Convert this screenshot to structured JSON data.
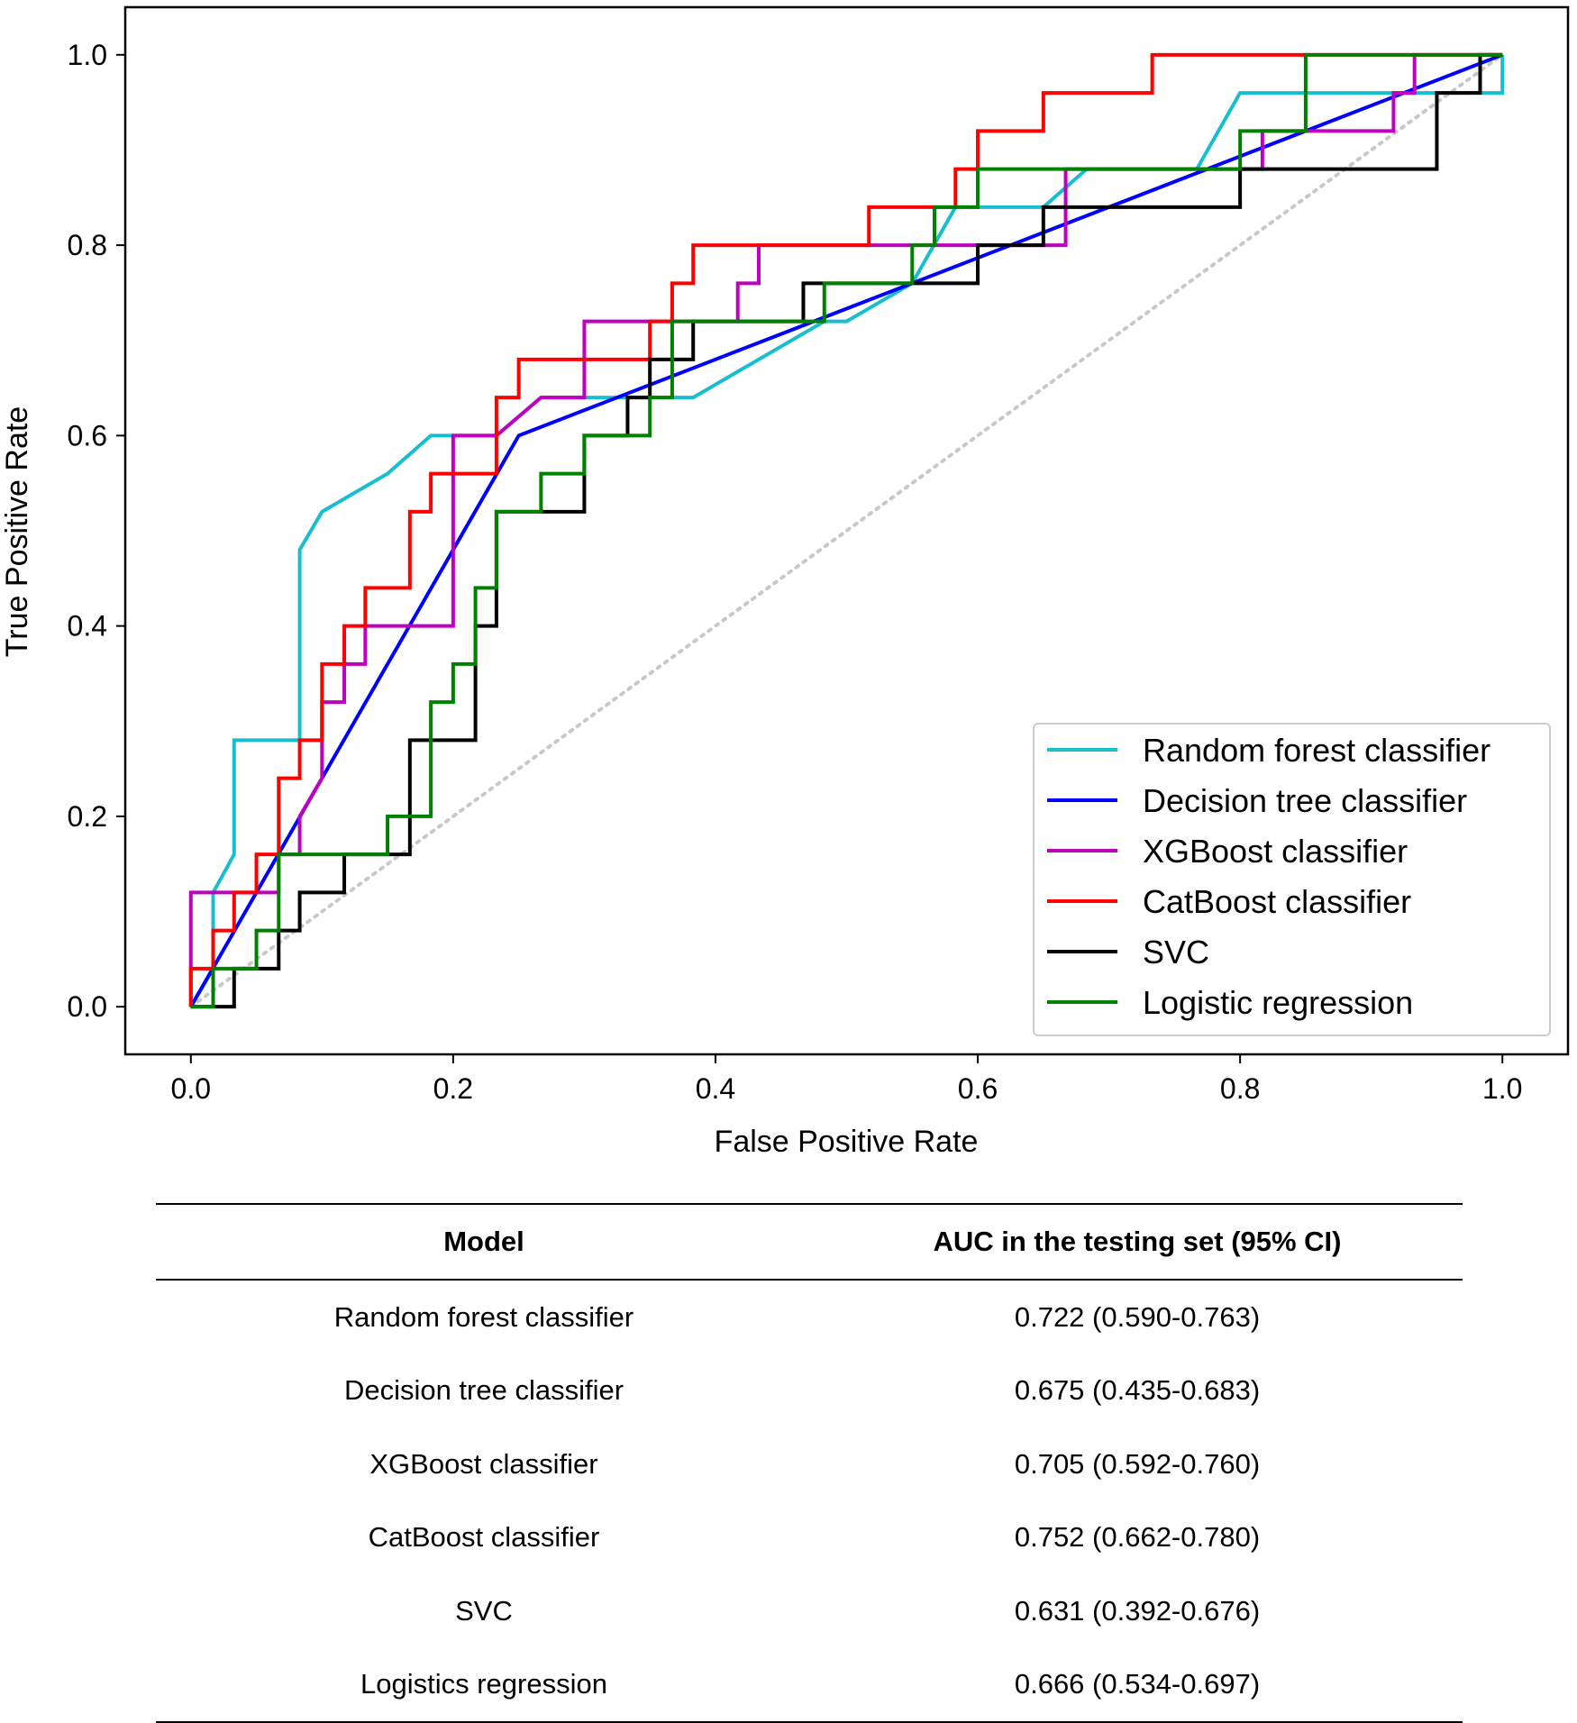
{
  "chart_data": {
    "type": "line",
    "title": "",
    "xlabel": "False Positive Rate",
    "ylabel": "True Positive Rate",
    "xlim": [
      -0.05,
      1.05
    ],
    "ylim": [
      -0.05,
      1.05
    ],
    "xticks": [
      "0.0",
      "0.2",
      "0.4",
      "0.6",
      "0.8",
      "1.0"
    ],
    "yticks": [
      "0.0",
      "0.2",
      "0.4",
      "0.6",
      "0.8",
      "1.0"
    ],
    "legend_position": "lower-right",
    "chance_line": {
      "name": "chance",
      "color": "#c8c8c8",
      "style": "dotted",
      "points": [
        [
          0,
          0
        ],
        [
          1,
          1
        ]
      ]
    },
    "series": [
      {
        "name": "Random forest classifier",
        "color": "#17becf",
        "points": [
          [
            0,
            0
          ],
          [
            0.017,
            0.04
          ],
          [
            0.017,
            0.12
          ],
          [
            0.033,
            0.16
          ],
          [
            0.033,
            0.28
          ],
          [
            0.083,
            0.28
          ],
          [
            0.083,
            0.48
          ],
          [
            0.1,
            0.52
          ],
          [
            0.15,
            0.56
          ],
          [
            0.183,
            0.6
          ],
          [
            0.233,
            0.6
          ],
          [
            0.267,
            0.64
          ],
          [
            0.383,
            0.64
          ],
          [
            0.433,
            0.68
          ],
          [
            0.483,
            0.72
          ],
          [
            0.5,
            0.72
          ],
          [
            0.55,
            0.76
          ],
          [
            0.583,
            0.84
          ],
          [
            0.65,
            0.84
          ],
          [
            0.683,
            0.88
          ],
          [
            0.767,
            0.88
          ],
          [
            0.8,
            0.96
          ],
          [
            1.0,
            0.96
          ],
          [
            1.0,
            1.0
          ]
        ]
      },
      {
        "name": "Decision tree classifier",
        "color": "#0000ff",
        "points": [
          [
            0,
            0
          ],
          [
            0.25,
            0.6
          ],
          [
            1.0,
            1.0
          ]
        ]
      },
      {
        "name": "XGBoost classifier",
        "color": "#bf00bf",
        "points": [
          [
            0,
            0
          ],
          [
            0,
            0.12
          ],
          [
            0.067,
            0.12
          ],
          [
            0.067,
            0.16
          ],
          [
            0.083,
            0.16
          ],
          [
            0.083,
            0.2
          ],
          [
            0.1,
            0.24
          ],
          [
            0.1,
            0.32
          ],
          [
            0.117,
            0.32
          ],
          [
            0.117,
            0.36
          ],
          [
            0.133,
            0.36
          ],
          [
            0.133,
            0.4
          ],
          [
            0.2,
            0.4
          ],
          [
            0.2,
            0.6
          ],
          [
            0.233,
            0.6
          ],
          [
            0.267,
            0.64
          ],
          [
            0.3,
            0.64
          ],
          [
            0.3,
            0.72
          ],
          [
            0.417,
            0.72
          ],
          [
            0.417,
            0.76
          ],
          [
            0.433,
            0.76
          ],
          [
            0.433,
            0.8
          ],
          [
            0.667,
            0.8
          ],
          [
            0.667,
            0.88
          ],
          [
            0.817,
            0.88
          ],
          [
            0.817,
            0.92
          ],
          [
            0.917,
            0.92
          ],
          [
            0.917,
            0.96
          ],
          [
            0.933,
            0.96
          ],
          [
            0.933,
            1.0
          ],
          [
            1.0,
            1.0
          ]
        ]
      },
      {
        "name": "CatBoost classifier",
        "color": "#ff0000",
        "points": [
          [
            0,
            0
          ],
          [
            0,
            0.04
          ],
          [
            0.017,
            0.04
          ],
          [
            0.017,
            0.08
          ],
          [
            0.033,
            0.08
          ],
          [
            0.033,
            0.12
          ],
          [
            0.05,
            0.12
          ],
          [
            0.05,
            0.16
          ],
          [
            0.067,
            0.16
          ],
          [
            0.067,
            0.24
          ],
          [
            0.083,
            0.24
          ],
          [
            0.083,
            0.28
          ],
          [
            0.1,
            0.28
          ],
          [
            0.1,
            0.36
          ],
          [
            0.117,
            0.36
          ],
          [
            0.117,
            0.4
          ],
          [
            0.133,
            0.4
          ],
          [
            0.133,
            0.44
          ],
          [
            0.167,
            0.44
          ],
          [
            0.167,
            0.52
          ],
          [
            0.183,
            0.52
          ],
          [
            0.183,
            0.56
          ],
          [
            0.233,
            0.56
          ],
          [
            0.233,
            0.64
          ],
          [
            0.25,
            0.64
          ],
          [
            0.25,
            0.68
          ],
          [
            0.35,
            0.68
          ],
          [
            0.35,
            0.72
          ],
          [
            0.367,
            0.72
          ],
          [
            0.367,
            0.76
          ],
          [
            0.383,
            0.76
          ],
          [
            0.383,
            0.8
          ],
          [
            0.517,
            0.8
          ],
          [
            0.517,
            0.84
          ],
          [
            0.583,
            0.84
          ],
          [
            0.583,
            0.88
          ],
          [
            0.6,
            0.88
          ],
          [
            0.6,
            0.92
          ],
          [
            0.65,
            0.92
          ],
          [
            0.65,
            0.96
          ],
          [
            0.733,
            0.96
          ],
          [
            0.733,
            1.0
          ],
          [
            1.0,
            1.0
          ]
        ]
      },
      {
        "name": "SVC",
        "color": "#000000",
        "points": [
          [
            0,
            0
          ],
          [
            0.033,
            0
          ],
          [
            0.033,
            0.04
          ],
          [
            0.067,
            0.04
          ],
          [
            0.067,
            0.08
          ],
          [
            0.083,
            0.08
          ],
          [
            0.083,
            0.12
          ],
          [
            0.117,
            0.12
          ],
          [
            0.117,
            0.16
          ],
          [
            0.167,
            0.16
          ],
          [
            0.167,
            0.28
          ],
          [
            0.217,
            0.28
          ],
          [
            0.217,
            0.4
          ],
          [
            0.233,
            0.4
          ],
          [
            0.233,
            0.52
          ],
          [
            0.3,
            0.52
          ],
          [
            0.3,
            0.6
          ],
          [
            0.333,
            0.6
          ],
          [
            0.333,
            0.64
          ],
          [
            0.35,
            0.64
          ],
          [
            0.35,
            0.68
          ],
          [
            0.383,
            0.68
          ],
          [
            0.383,
            0.72
          ],
          [
            0.467,
            0.72
          ],
          [
            0.467,
            0.76
          ],
          [
            0.6,
            0.76
          ],
          [
            0.6,
            0.8
          ],
          [
            0.65,
            0.8
          ],
          [
            0.65,
            0.84
          ],
          [
            0.8,
            0.84
          ],
          [
            0.8,
            0.88
          ],
          [
            0.95,
            0.88
          ],
          [
            0.95,
            0.96
          ],
          [
            0.983,
            0.96
          ],
          [
            0.983,
            1.0
          ],
          [
            1.0,
            1.0
          ]
        ]
      },
      {
        "name": "Logistic regression",
        "color": "#008000",
        "points": [
          [
            0,
            0
          ],
          [
            0.017,
            0
          ],
          [
            0.017,
            0.04
          ],
          [
            0.05,
            0.04
          ],
          [
            0.05,
            0.08
          ],
          [
            0.067,
            0.08
          ],
          [
            0.067,
            0.16
          ],
          [
            0.15,
            0.16
          ],
          [
            0.15,
            0.2
          ],
          [
            0.183,
            0.2
          ],
          [
            0.183,
            0.32
          ],
          [
            0.2,
            0.32
          ],
          [
            0.2,
            0.36
          ],
          [
            0.217,
            0.36
          ],
          [
            0.217,
            0.44
          ],
          [
            0.233,
            0.44
          ],
          [
            0.233,
            0.52
          ],
          [
            0.267,
            0.52
          ],
          [
            0.267,
            0.56
          ],
          [
            0.3,
            0.56
          ],
          [
            0.3,
            0.6
          ],
          [
            0.35,
            0.6
          ],
          [
            0.35,
            0.64
          ],
          [
            0.367,
            0.64
          ],
          [
            0.367,
            0.72
          ],
          [
            0.483,
            0.72
          ],
          [
            0.483,
            0.76
          ],
          [
            0.55,
            0.76
          ],
          [
            0.55,
            0.8
          ],
          [
            0.567,
            0.8
          ],
          [
            0.567,
            0.84
          ],
          [
            0.6,
            0.84
          ],
          [
            0.6,
            0.88
          ],
          [
            0.8,
            0.88
          ],
          [
            0.8,
            0.92
          ],
          [
            0.85,
            0.92
          ],
          [
            0.85,
            1.0
          ],
          [
            1.0,
            1.0
          ]
        ]
      }
    ]
  },
  "table": {
    "headers": [
      "Model",
      "AUC in the testing set (95% CI)"
    ],
    "rows": [
      {
        "model": "Random forest classifier",
        "auc": "0.722 (0.590-0.763)"
      },
      {
        "model": "Decision tree classifier",
        "auc": "0.675 (0.435-0.683)"
      },
      {
        "model": "XGBoost classifier",
        "auc": "0.705 (0.592-0.760)"
      },
      {
        "model": "CatBoost classifier",
        "auc": "0.752 (0.662-0.780)"
      },
      {
        "model": "SVC",
        "auc": "0.631 (0.392-0.676)"
      },
      {
        "model": "Logistics regression",
        "auc": "0.666 (0.534-0.697)"
      }
    ]
  }
}
